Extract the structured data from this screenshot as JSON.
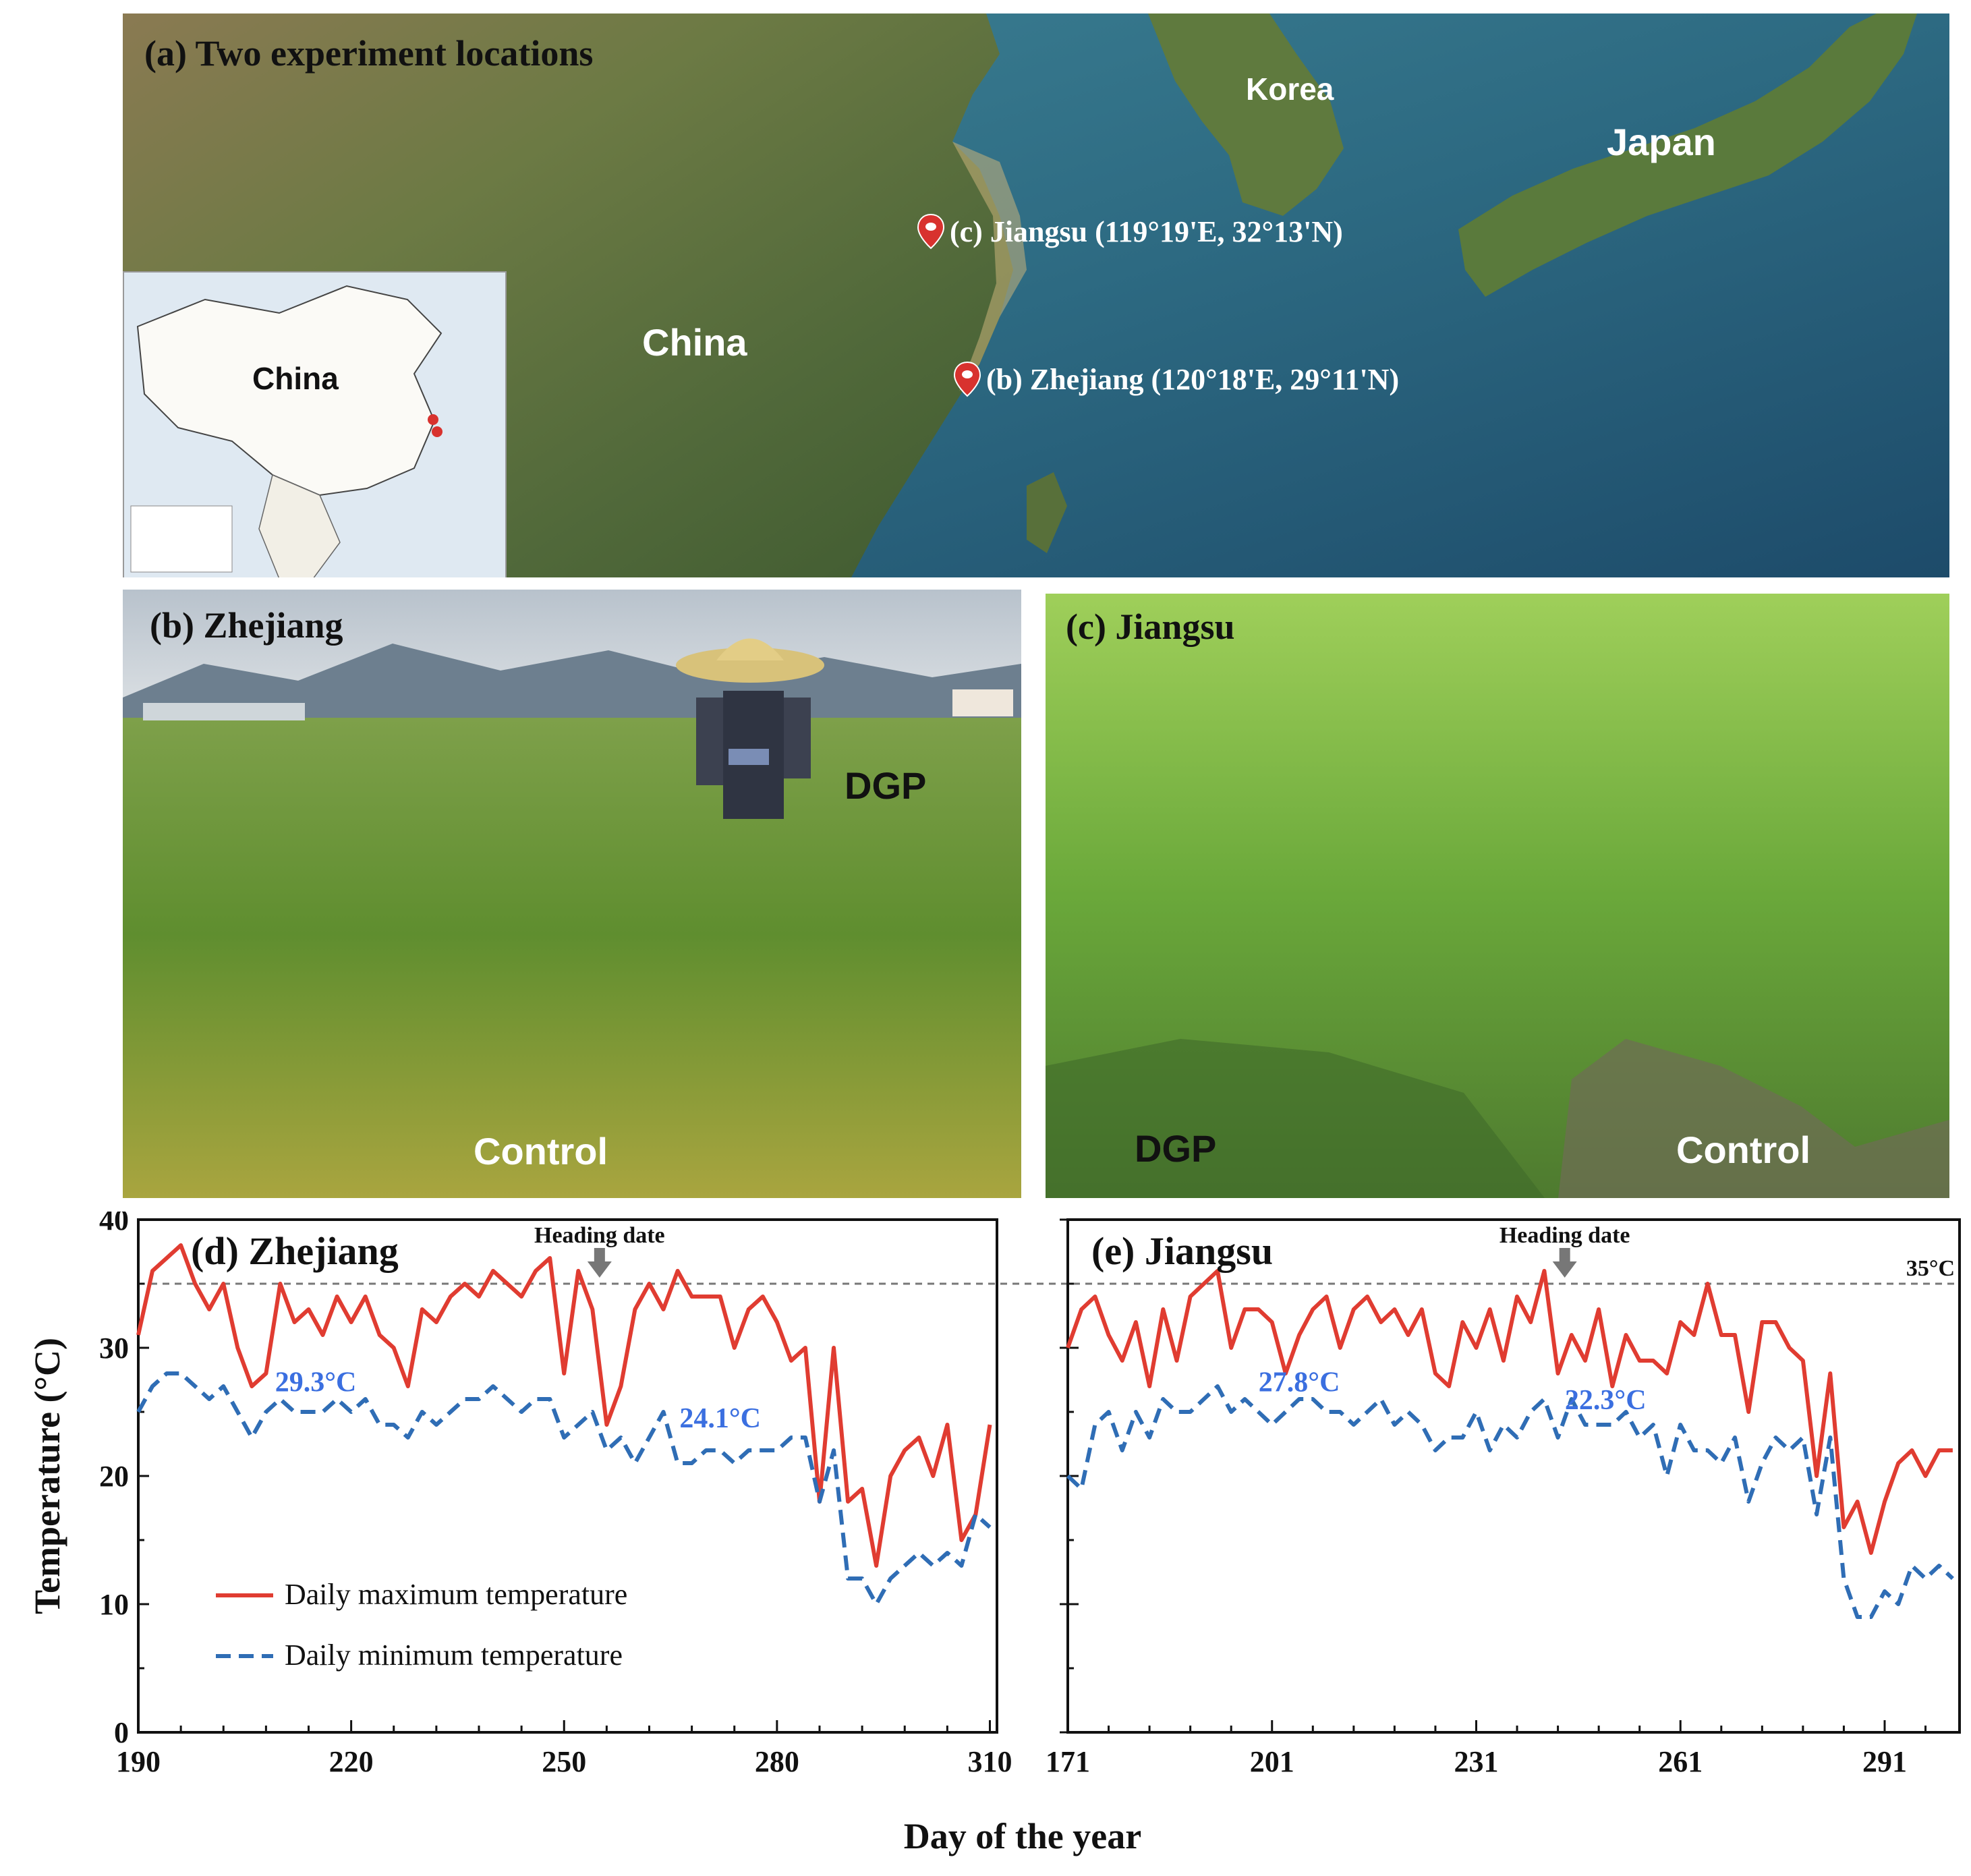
{
  "map": {
    "title": "(a) Two experiment locations",
    "labels": {
      "korea": "Korea",
      "japan": "Japan",
      "china": "China",
      "inset_china": "China"
    },
    "markers": [
      {
        "id": "jiangsu",
        "text": "(c) Jiangsu (119°19'E, 32°13'N)"
      },
      {
        "id": "zhejiang",
        "text": "(b) Zhejiang (120°18'E, 29°11'N)"
      }
    ],
    "colors": {
      "sea": "#2f6f86",
      "land": "#5e6f3a",
      "marker": "#d8322e"
    }
  },
  "photos": {
    "zhejiang": {
      "title": "(b) Zhejiang",
      "label_dgp": "DGP",
      "label_control": "Control"
    },
    "jiangsu": {
      "title": "(c) Jiangsu",
      "label_dgp": "DGP",
      "label_control": "Control"
    }
  },
  "chart_data": [
    {
      "type": "line",
      "title": "(d) Zhejiang",
      "xlabel": "Day of the year",
      "ylabel": "Temperature (°C)",
      "xlim": [
        190,
        311
      ],
      "ylim": [
        0,
        40
      ],
      "xticks": [
        190,
        220,
        250,
        280,
        310
      ],
      "yticks": [
        0,
        10,
        20,
        30,
        40
      ],
      "threshold": {
        "value": 35,
        "label": "35°C"
      },
      "heading_date": {
        "day": 255,
        "label": "Heading date"
      },
      "annotations": [
        {
          "text": "29.3°C",
          "x": 215,
          "y": 26.6
        },
        {
          "text": "24.1°C",
          "x": 272,
          "y": 23.8
        }
      ],
      "legend": [
        "Daily maximum temperature",
        "Daily minimum temperature"
      ],
      "series": [
        {
          "name": "Daily maximum temperature",
          "style": "solid",
          "color": "#e03c31",
          "x": [
            190,
            192,
            194,
            196,
            198,
            200,
            202,
            204,
            206,
            208,
            210,
            212,
            214,
            216,
            218,
            220,
            222,
            224,
            226,
            228,
            230,
            232,
            234,
            236,
            238,
            240,
            242,
            244,
            246,
            248,
            250,
            252,
            254,
            256,
            258,
            260,
            262,
            264,
            266,
            268,
            270,
            272,
            274,
            276,
            278,
            280,
            282,
            284,
            286,
            288,
            290,
            292,
            294,
            296,
            298,
            300,
            302,
            304,
            306,
            308,
            310
          ],
          "y": [
            31,
            36,
            37,
            38,
            35,
            33,
            35,
            30,
            27,
            28,
            35,
            32,
            33,
            31,
            34,
            32,
            34,
            31,
            30,
            27,
            33,
            32,
            34,
            35,
            34,
            36,
            35,
            34,
            36,
            37,
            28,
            36,
            33,
            24,
            27,
            33,
            35,
            33,
            36,
            34,
            34,
            34,
            30,
            33,
            34,
            32,
            29,
            30,
            18,
            30,
            18,
            19,
            13,
            20,
            22,
            23,
            20,
            24,
            15,
            17,
            24
          ]
        },
        {
          "name": "Daily minimum temperature",
          "style": "dashed",
          "color": "#2f6db5",
          "x": [
            190,
            192,
            194,
            196,
            198,
            200,
            202,
            204,
            206,
            208,
            210,
            212,
            214,
            216,
            218,
            220,
            222,
            224,
            226,
            228,
            230,
            232,
            234,
            236,
            238,
            240,
            242,
            244,
            246,
            248,
            250,
            252,
            254,
            256,
            258,
            260,
            262,
            264,
            266,
            268,
            270,
            272,
            274,
            276,
            278,
            280,
            282,
            284,
            286,
            288,
            290,
            292,
            294,
            296,
            298,
            300,
            302,
            304,
            306,
            308,
            310
          ],
          "y": [
            25,
            27,
            28,
            28,
            27,
            26,
            27,
            25,
            23,
            25,
            26,
            25,
            25,
            25,
            26,
            25,
            26,
            24,
            24,
            23,
            25,
            24,
            25,
            26,
            26,
            27,
            26,
            25,
            26,
            26,
            23,
            24,
            25,
            22,
            23,
            21,
            23,
            25,
            21,
            21,
            22,
            22,
            21,
            22,
            22,
            22,
            23,
            23,
            18,
            22,
            12,
            12,
            10,
            12,
            13,
            14,
            13,
            14,
            13,
            17,
            16
          ]
        }
      ]
    },
    {
      "type": "line",
      "title": "(e) Jiangsu",
      "xlabel": "Day of the year",
      "ylabel": "Temperature (°C)",
      "xlim": [
        171,
        302
      ],
      "ylim": [
        0,
        40
      ],
      "xticks": [
        171,
        201,
        231,
        261,
        291
      ],
      "yticks": [
        0,
        10,
        20,
        30,
        40
      ],
      "threshold": {
        "value": 35,
        "label": "35°C"
      },
      "heading_date": {
        "day": 244,
        "label": "Heading date"
      },
      "annotations": [
        {
          "text": "27.8°C",
          "x": 205,
          "y": 26.6
        },
        {
          "text": "22.3°C",
          "x": 250,
          "y": 25.2
        }
      ],
      "legend": [],
      "series": [
        {
          "name": "Daily maximum temperature",
          "style": "solid",
          "color": "#e03c31",
          "x": [
            171,
            173,
            175,
            177,
            179,
            181,
            183,
            185,
            187,
            189,
            191,
            193,
            195,
            197,
            199,
            201,
            203,
            205,
            207,
            209,
            211,
            213,
            215,
            217,
            219,
            221,
            223,
            225,
            227,
            229,
            231,
            233,
            235,
            237,
            239,
            241,
            243,
            245,
            247,
            249,
            251,
            253,
            255,
            257,
            259,
            261,
            263,
            265,
            267,
            269,
            271,
            273,
            275,
            277,
            279,
            281,
            283,
            285,
            287,
            289,
            291,
            293,
            295,
            297,
            299,
            301
          ],
          "y": [
            30,
            33,
            34,
            31,
            29,
            32,
            27,
            33,
            29,
            34,
            35,
            36,
            30,
            33,
            33,
            32,
            28,
            31,
            33,
            34,
            30,
            33,
            34,
            32,
            33,
            31,
            33,
            28,
            27,
            32,
            30,
            33,
            29,
            34,
            32,
            36,
            28,
            31,
            29,
            33,
            27,
            31,
            29,
            29,
            28,
            32,
            31,
            35,
            31,
            31,
            25,
            32,
            32,
            30,
            29,
            20,
            28,
            16,
            18,
            14,
            18,
            21,
            22,
            20,
            22,
            22
          ]
        },
        {
          "name": "Daily minimum temperature",
          "style": "dashed",
          "color": "#2f6db5",
          "x": [
            171,
            173,
            175,
            177,
            179,
            181,
            183,
            185,
            187,
            189,
            191,
            193,
            195,
            197,
            199,
            201,
            203,
            205,
            207,
            209,
            211,
            213,
            215,
            217,
            219,
            221,
            223,
            225,
            227,
            229,
            231,
            233,
            235,
            237,
            239,
            241,
            243,
            245,
            247,
            249,
            251,
            253,
            255,
            257,
            259,
            261,
            263,
            265,
            267,
            269,
            271,
            273,
            275,
            277,
            279,
            281,
            283,
            285,
            287,
            289,
            291,
            293,
            295,
            297,
            299,
            301
          ],
          "y": [
            20,
            19,
            24,
            25,
            22,
            25,
            23,
            26,
            25,
            25,
            26,
            27,
            25,
            26,
            25,
            24,
            25,
            26,
            26,
            25,
            25,
            24,
            25,
            26,
            24,
            25,
            24,
            22,
            23,
            23,
            25,
            22,
            24,
            23,
            25,
            26,
            23,
            26,
            24,
            24,
            24,
            25,
            23,
            24,
            20,
            24,
            22,
            22,
            21,
            23,
            18,
            21,
            23,
            22,
            23,
            17,
            23,
            12,
            9,
            9,
            11,
            10,
            13,
            12,
            13,
            12
          ]
        }
      ]
    }
  ]
}
